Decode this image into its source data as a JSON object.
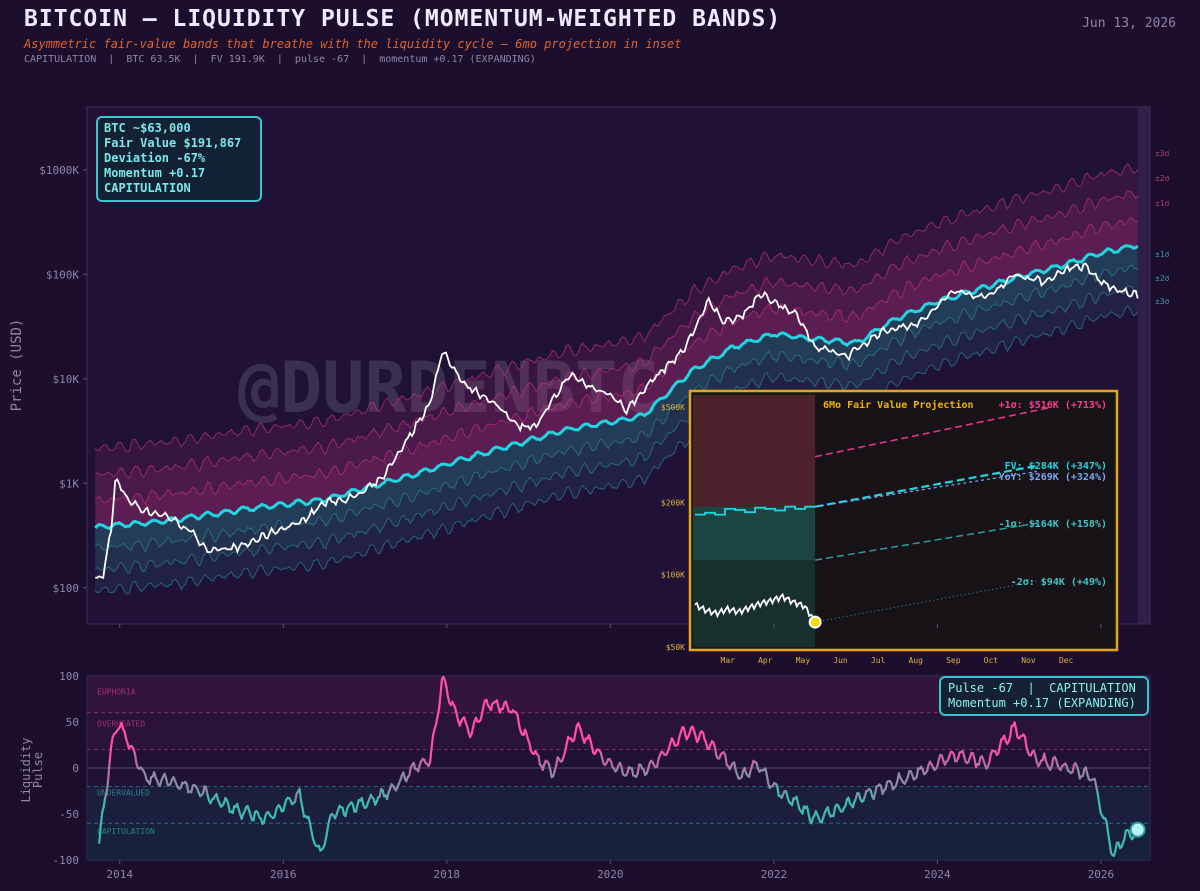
{
  "header": {
    "title": "BITCOIN — LIQUIDITY PULSE (MOMENTUM-WEIGHTED BANDS)",
    "subtitle": "Asymmetric fair-value bands that breathe with the liquidity cycle — 6mo projection in inset",
    "stats": "CAPITULATION  |  BTC 63.5K  |  FV 191.9K  |  pulse -67  |  momentum +0.17 (EXPANDING)",
    "date": "Jun 13, 2026"
  },
  "watermark": "@DURDENBTC",
  "info_box": {
    "line1": "BTC ~$63,000",
    "line2": "Fair Value $191,867",
    "line3": "Deviation -67%",
    "line4": "Momentum +0.17",
    "line5": "CAPITULATION"
  },
  "pulse_box": {
    "line1": "Pulse -67  |  CAPITULATION",
    "line2": "Momentum +0.17 (EXPANDING)"
  },
  "colors": {
    "background": "#1c0f2e",
    "fair_value": "#22d3e0",
    "price": "#ffffff",
    "upper_bands": "#d1338a",
    "lower_bands": "#2f8f99",
    "inset_border": "#e8a317",
    "upper_projection": "#e8338a",
    "current_marker": "#f5d90a"
  },
  "chart_data": [
    {
      "type": "line",
      "name": "main",
      "ylabel": "Price (USD)",
      "yscale": "log",
      "ylim": [
        45,
        4000000
      ],
      "xlim": [
        2013.6,
        2026.6
      ],
      "yticks": [
        100,
        1000,
        10000,
        100000,
        1000000
      ],
      "yticklabels": [
        "$100",
        "$1K",
        "$10K",
        "$100K",
        "$1000K"
      ],
      "band_labels": [
        "±3σ",
        "±2σ",
        "±1σ",
        "±1σ",
        "±2σ",
        "±3σ"
      ],
      "fair_value_points": [
        [
          2013.7,
          380
        ],
        [
          2014.5,
          430
        ],
        [
          2015.5,
          560
        ],
        [
          2016.5,
          700
        ],
        [
          2017.5,
          1150
        ],
        [
          2018.5,
          2000
        ],
        [
          2019.5,
          3300
        ],
        [
          2020.4,
          4400
        ],
        [
          2021.0,
          12000
        ],
        [
          2021.5,
          20000
        ],
        [
          2022.0,
          27000
        ],
        [
          2022.5,
          24000
        ],
        [
          2023.0,
          22000
        ],
        [
          2023.5,
          38000
        ],
        [
          2024.0,
          55000
        ],
        [
          2024.5,
          72000
        ],
        [
          2025.0,
          95000
        ],
        [
          2025.5,
          120000
        ],
        [
          2026.0,
          160000
        ],
        [
          2026.45,
          191867
        ]
      ],
      "price_points": [
        [
          2013.7,
          120
        ],
        [
          2013.8,
          130
        ],
        [
          2013.9,
          400
        ],
        [
          2013.95,
          1100
        ],
        [
          2014.1,
          700
        ],
        [
          2014.3,
          550
        ],
        [
          2014.6,
          480
        ],
        [
          2014.9,
          330
        ],
        [
          2015.1,
          220
        ],
        [
          2015.5,
          250
        ],
        [
          2015.9,
          350
        ],
        [
          2016.2,
          420
        ],
        [
          2016.5,
          650
        ],
        [
          2016.9,
          750
        ],
        [
          2017.2,
          1100
        ],
        [
          2017.5,
          2500
        ],
        [
          2017.8,
          6000
        ],
        [
          2017.95,
          19000
        ],
        [
          2018.2,
          9000
        ],
        [
          2018.5,
          6500
        ],
        [
          2018.9,
          3500
        ],
        [
          2019.1,
          3600
        ],
        [
          2019.5,
          11000
        ],
        [
          2019.8,
          8000
        ],
        [
          2020.0,
          7200
        ],
        [
          2020.2,
          5000
        ],
        [
          2020.5,
          9500
        ],
        [
          2020.9,
          19000
        ],
        [
          2021.2,
          55000
        ],
        [
          2021.4,
          35000
        ],
        [
          2021.6,
          40000
        ],
        [
          2021.85,
          65000
        ],
        [
          2022.3,
          40000
        ],
        [
          2022.5,
          20000
        ],
        [
          2022.9,
          16500
        ],
        [
          2023.3,
          28000
        ],
        [
          2023.8,
          35000
        ],
        [
          2024.2,
          70000
        ],
        [
          2024.6,
          60000
        ],
        [
          2024.95,
          100000
        ],
        [
          2025.3,
          85000
        ],
        [
          2025.6,
          115000
        ],
        [
          2025.8,
          120000
        ],
        [
          2026.0,
          85000
        ],
        [
          2026.2,
          70000
        ],
        [
          2026.45,
          63500
        ]
      ],
      "xticks": [
        "2014",
        "2016",
        "2018",
        "2020",
        "2022",
        "2024",
        "2026"
      ]
    },
    {
      "type": "line",
      "name": "inset",
      "title": "6Mo Fair Value Projection",
      "yscale": "log",
      "ylim": [
        50000,
        560000
      ],
      "yticklabels": [
        "$50K",
        "$100K",
        "$200K",
        "$500K"
      ],
      "xticklabels": [
        "Mar",
        "Apr",
        "May",
        "Jun",
        "Jul",
        "Aug",
        "Sep",
        "Oct",
        "Nov",
        "Dec"
      ],
      "projections": [
        {
          "label": "+1σ: $516K (+713%)",
          "value": 516000
        },
        {
          "label": "FV: $284K (+347%)",
          "value": 284000
        },
        {
          "label": "YoY: $269K (+324%)",
          "value": 269000
        },
        {
          "label": "-1σ: $164K (+158%)",
          "value": 164000
        },
        {
          "label": "-2σ: $94K (+49%)",
          "value": 94000
        }
      ],
      "current": {
        "fair_value": 191867,
        "upper": 310000,
        "lower_1": 115000,
        "lower_2": 62000,
        "price": 63500
      },
      "fv_history": [
        178000,
        181000,
        178000,
        188000,
        186000,
        182000,
        190000,
        188000,
        185000,
        192000,
        188000,
        191867
      ],
      "price_history": [
        75000,
        71000,
        69000,
        72000,
        70000,
        73000,
        76000,
        78000,
        81000,
        77000,
        74000,
        63500
      ]
    },
    {
      "type": "line",
      "name": "liquidity_pulse",
      "ylabel": "Liquidity Pulse",
      "ylim": [
        -100,
        100
      ],
      "yticks": [
        100,
        50,
        0,
        -50,
        -100
      ],
      "zones": [
        "EUPHORIA",
        "OVERHEATED",
        "UNDERVALUED",
        "CAPITULATION"
      ],
      "zone_lines": [
        60,
        20,
        -20,
        -60
      ],
      "points": [
        [
          2013.75,
          -80
        ],
        [
          2013.9,
          20
        ],
        [
          2013.97,
          50
        ],
        [
          2014.1,
          30
        ],
        [
          2014.3,
          -10
        ],
        [
          2014.6,
          -15
        ],
        [
          2015.0,
          -25
        ],
        [
          2015.4,
          -45
        ],
        [
          2015.8,
          -55
        ],
        [
          2016.0,
          -40
        ],
        [
          2016.2,
          -30
        ],
        [
          2016.35,
          -70
        ],
        [
          2016.45,
          -95
        ],
        [
          2016.6,
          -50
        ],
        [
          2016.9,
          -40
        ],
        [
          2017.1,
          -35
        ],
        [
          2017.3,
          -25
        ],
        [
          2017.6,
          0
        ],
        [
          2017.8,
          10
        ],
        [
          2017.95,
          98
        ],
        [
          2018.1,
          60
        ],
        [
          2018.3,
          40
        ],
        [
          2018.5,
          70
        ],
        [
          2018.8,
          65
        ],
        [
          2019.1,
          10
        ],
        [
          2019.3,
          -5
        ],
        [
          2019.6,
          45
        ],
        [
          2019.8,
          20
        ],
        [
          2020.0,
          5
        ],
        [
          2020.2,
          -5
        ],
        [
          2020.5,
          0
        ],
        [
          2020.9,
          40
        ],
        [
          2021.1,
          35
        ],
        [
          2021.4,
          10
        ],
        [
          2021.6,
          -10
        ],
        [
          2021.8,
          5
        ],
        [
          2022.0,
          -20
        ],
        [
          2022.3,
          -40
        ],
        [
          2022.5,
          -55
        ],
        [
          2022.8,
          -45
        ],
        [
          2023.1,
          -30
        ],
        [
          2023.5,
          -15
        ],
        [
          2023.9,
          0
        ],
        [
          2024.2,
          15
        ],
        [
          2024.6,
          5
        ],
        [
          2024.95,
          45
        ],
        [
          2025.2,
          10
        ],
        [
          2025.6,
          0
        ],
        [
          2025.9,
          -10
        ],
        [
          2026.05,
          -60
        ],
        [
          2026.15,
          -95
        ],
        [
          2026.3,
          -75
        ],
        [
          2026.45,
          -67
        ]
      ],
      "xticks": [
        "2014",
        "2016",
        "2018",
        "2020",
        "2022",
        "2024",
        "2026"
      ]
    }
  ]
}
